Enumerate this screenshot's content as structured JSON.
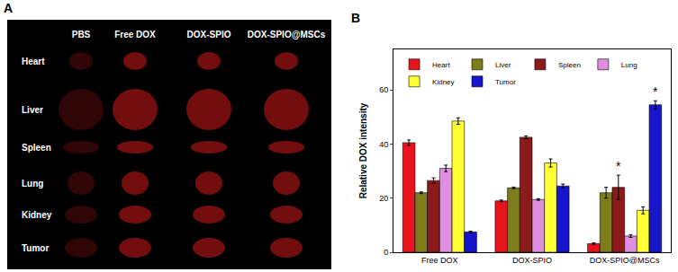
{
  "panel_a": {
    "label": "A",
    "columns": [
      "PBS",
      "Free DOX",
      "DOX-SPIO",
      "DOX-SPIO@MSCs"
    ],
    "rows": [
      "Heart",
      "Liver",
      "Spleen",
      "Lung",
      "Kidney",
      "Tumor"
    ]
  },
  "chart_data": {
    "type": "bar",
    "title": "B",
    "y_label": "Relative DOX intensity",
    "categories": [
      "Free DOX",
      "DOX-SPIO",
      "DOX-SPIO@MSCs"
    ],
    "series": [
      {
        "name": "Heart",
        "color": "#e8141b",
        "values": [
          40.5,
          19,
          3.2
        ],
        "errors": [
          1,
          0.3,
          0.3
        ]
      },
      {
        "name": "Liver",
        "color": "#7d7d1e",
        "values": [
          22,
          23.8,
          22
        ],
        "errors": [
          0.3,
          0.3,
          2
        ]
      },
      {
        "name": "Spleen",
        "color": "#8b1a1a",
        "values": [
          26.5,
          42.5,
          24
        ],
        "errors": [
          1,
          0.5,
          4.5
        ]
      },
      {
        "name": "Lung",
        "color": "#e08ee0",
        "values": [
          31,
          19.5,
          6
        ],
        "errors": [
          1.2,
          0.3,
          0.5
        ]
      },
      {
        "name": "Kidney",
        "color": "#ffff33",
        "values": [
          48.5,
          33,
          15.5
        ],
        "errors": [
          1.2,
          1.5,
          1.3
        ]
      },
      {
        "name": "Tumor",
        "color": "#1616cc",
        "values": [
          7.5,
          24.5,
          54.5
        ],
        "errors": [
          0.3,
          0.7,
          1.5
        ]
      }
    ],
    "annotations": [
      {
        "text": "*",
        "category": "DOX-SPIO@MSCs",
        "series": "Spleen"
      },
      {
        "text": "*",
        "category": "DOX-SPIO@MSCs",
        "series": "Tumor"
      }
    ],
    "ylim": [
      0,
      75
    ],
    "yticks": [
      0,
      20,
      40,
      60
    ],
    "grid": false,
    "legend": "top"
  }
}
